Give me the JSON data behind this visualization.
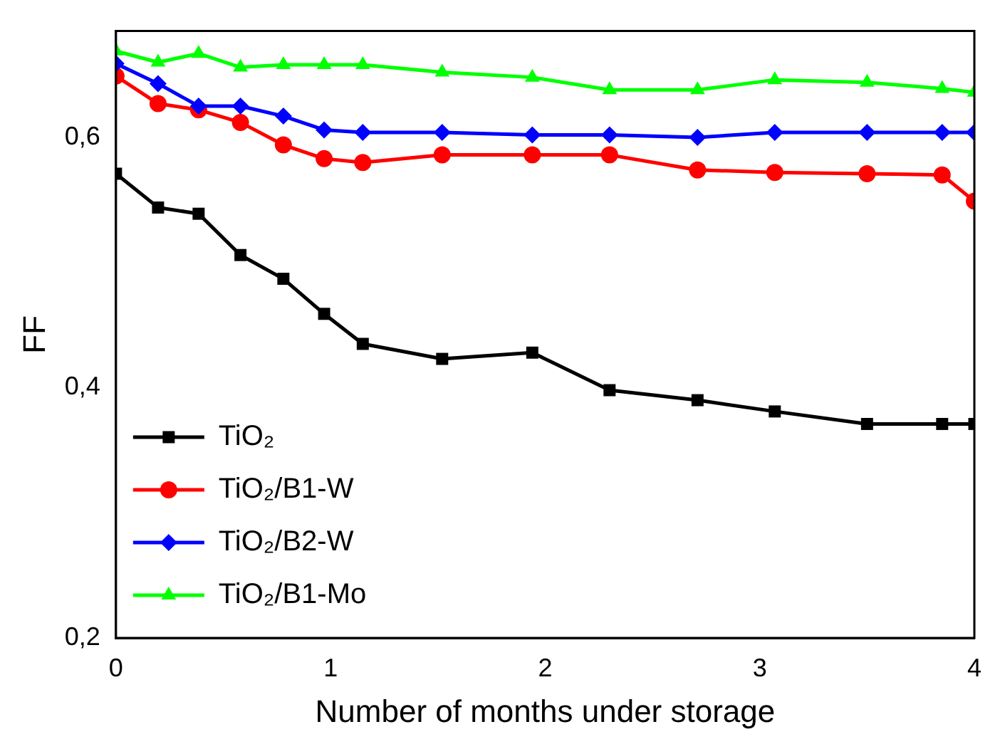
{
  "chart_data": {
    "type": "line",
    "xlabel": "Number of months under storage",
    "ylabel": "FF",
    "x": [
      0,
      0.196,
      0.385,
      0.58,
      0.78,
      0.97,
      1.15,
      1.52,
      1.94,
      2.3,
      2.71,
      3.07,
      3.5,
      3.85,
      4.0
    ],
    "series": [
      {
        "name": "TiO₂",
        "color": "#000000",
        "marker": "square",
        "values": [
          0.571,
          0.544,
          0.539,
          0.506,
          0.487,
          0.459,
          0.435,
          0.423,
          0.428,
          0.398,
          0.39,
          0.381,
          0.371,
          0.371,
          0.371
        ]
      },
      {
        "name": "TiO₂/B1-W",
        "color": "#ff0000",
        "marker": "circle",
        "values": [
          0.649,
          0.627,
          0.622,
          0.612,
          0.594,
          0.583,
          0.58,
          0.586,
          0.586,
          0.586,
          0.574,
          0.572,
          0.571,
          0.57,
          0.549
        ]
      },
      {
        "name": "TiO₂/B2-W",
        "color": "#0000ff",
        "marker": "diamond",
        "values": [
          0.659,
          0.643,
          0.625,
          0.625,
          0.617,
          0.606,
          0.604,
          0.604,
          0.602,
          0.602,
          0.6,
          0.604,
          0.604,
          0.604,
          0.604
        ]
      },
      {
        "name": "TiO₂/B1-Mo",
        "color": "#00ff00",
        "marker": "triangle",
        "values": [
          0.669,
          0.66,
          0.667,
          0.656,
          0.658,
          0.658,
          0.658,
          0.652,
          0.648,
          0.638,
          0.638,
          0.646,
          0.644,
          0.639,
          0.636
        ]
      }
    ],
    "xlim": [
      0,
      4
    ],
    "xticks": [
      0,
      1,
      2,
      3,
      4
    ],
    "ylim": [
      0.2,
      0.685
    ],
    "yticks": [
      {
        "value": 0.2,
        "label": "0,2"
      },
      {
        "value": 0.4,
        "label": "0,4"
      },
      {
        "value": 0.6,
        "label": "0,6"
      }
    ],
    "grid": false,
    "legend": "bottom left",
    "line_style": "solid"
  }
}
